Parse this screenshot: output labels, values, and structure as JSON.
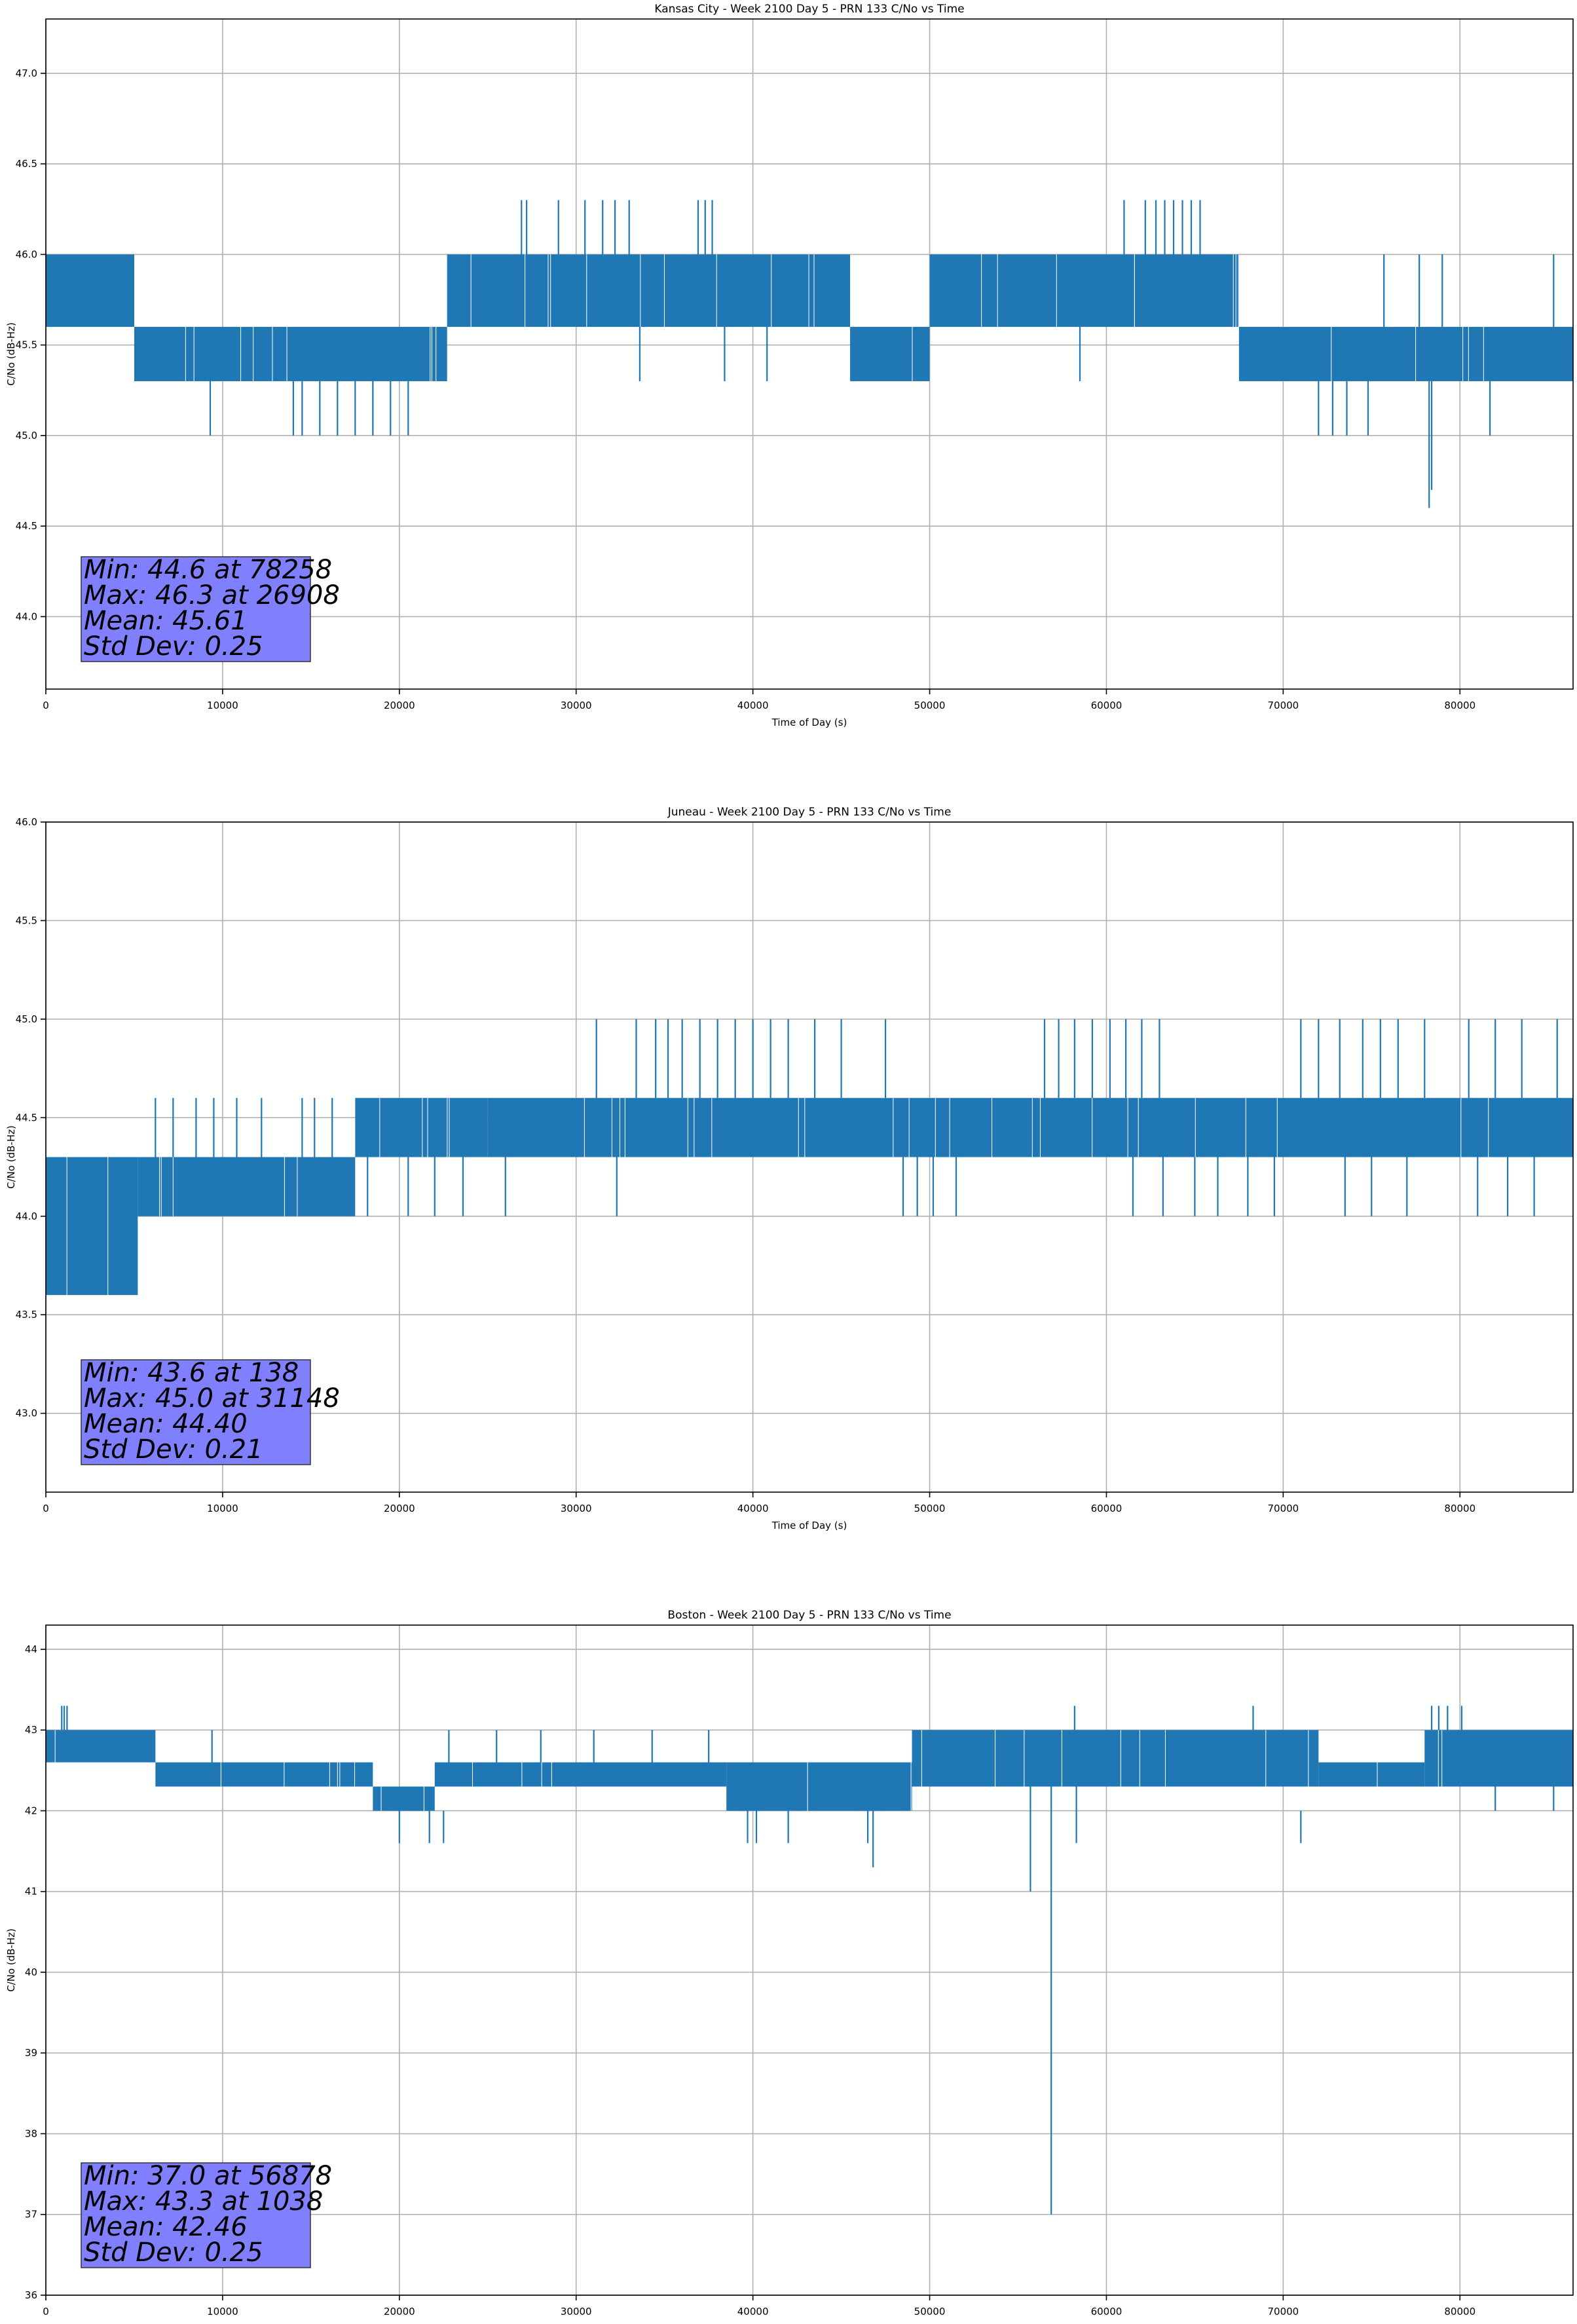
{
  "chart_data": [
    {
      "type": "line",
      "title": "Kansas City - Week 2100 Day 5 - PRN 133 C/No vs Time",
      "xlabel": "Time of Day (s)",
      "ylabel": "C/No (dB-Hz)",
      "xlim": [
        0,
        86400
      ],
      "ylim": [
        43.6,
        47.3
      ],
      "xticks": [
        "0",
        "10000",
        "20000",
        "30000",
        "40000",
        "50000",
        "60000",
        "70000",
        "80000"
      ],
      "yticks": [
        "44.0",
        "44.5",
        "45.0",
        "45.5",
        "46.0",
        "46.5",
        "47.0"
      ],
      "grid": true,
      "series_color": "#1f77b4",
      "segments": [
        {
          "x": [
            0,
            5000
          ],
          "low": 45.6,
          "high": 46.0
        },
        {
          "x": [
            5000,
            22700
          ],
          "low": 45.3,
          "high": 45.6
        },
        {
          "x": [
            22700,
            45500
          ],
          "low": 45.6,
          "high": 46.0
        },
        {
          "x": [
            45500,
            50000
          ],
          "low": 45.3,
          "high": 45.6
        },
        {
          "x": [
            50000,
            67500
          ],
          "low": 45.6,
          "high": 46.0
        },
        {
          "x": [
            67500,
            86400
          ],
          "low": 45.3,
          "high": 45.6
        }
      ],
      "spikes": [
        {
          "x": 9300,
          "low": 45.0,
          "high": 45.3
        },
        {
          "x": 14000,
          "low": 45.0,
          "high": 45.3
        },
        {
          "x": 14500,
          "low": 45.0,
          "high": 45.3
        },
        {
          "x": 15500,
          "low": 45.0,
          "high": 45.3
        },
        {
          "x": 16500,
          "low": 45.0,
          "high": 45.3
        },
        {
          "x": 17500,
          "low": 45.0,
          "high": 45.3
        },
        {
          "x": 18500,
          "low": 45.0,
          "high": 45.3
        },
        {
          "x": 19500,
          "low": 45.0,
          "high": 45.3
        },
        {
          "x": 20500,
          "low": 45.0,
          "high": 45.3
        },
        {
          "x": 26908,
          "low": 46.0,
          "high": 46.3
        },
        {
          "x": 27200,
          "low": 46.0,
          "high": 46.3
        },
        {
          "x": 29000,
          "low": 46.0,
          "high": 46.3
        },
        {
          "x": 30500,
          "low": 46.0,
          "high": 46.3
        },
        {
          "x": 31500,
          "low": 46.0,
          "high": 46.3
        },
        {
          "x": 32200,
          "low": 46.0,
          "high": 46.3
        },
        {
          "x": 33000,
          "low": 46.0,
          "high": 46.3
        },
        {
          "x": 33600,
          "low": 45.3,
          "high": 45.6
        },
        {
          "x": 36900,
          "low": 46.0,
          "high": 46.3
        },
        {
          "x": 37300,
          "low": 46.0,
          "high": 46.3
        },
        {
          "x": 37700,
          "low": 46.0,
          "high": 46.3
        },
        {
          "x": 38400,
          "low": 45.3,
          "high": 45.6
        },
        {
          "x": 40800,
          "low": 45.3,
          "high": 45.6
        },
        {
          "x": 61000,
          "low": 46.0,
          "high": 46.3
        },
        {
          "x": 62200,
          "low": 46.0,
          "high": 46.3
        },
        {
          "x": 62800,
          "low": 46.0,
          "high": 46.3
        },
        {
          "x": 63300,
          "low": 46.0,
          "high": 46.3
        },
        {
          "x": 63800,
          "low": 46.0,
          "high": 46.3
        },
        {
          "x": 64300,
          "low": 46.0,
          "high": 46.3
        },
        {
          "x": 64800,
          "low": 46.0,
          "high": 46.3
        },
        {
          "x": 65300,
          "low": 46.0,
          "high": 46.3
        },
        {
          "x": 58500,
          "low": 45.3,
          "high": 45.6
        },
        {
          "x": 72000,
          "low": 45.0,
          "high": 45.3
        },
        {
          "x": 72800,
          "low": 45.0,
          "high": 45.3
        },
        {
          "x": 73600,
          "low": 45.0,
          "high": 45.3
        },
        {
          "x": 74800,
          "low": 45.0,
          "high": 45.3
        },
        {
          "x": 78258,
          "low": 44.6,
          "high": 45.3
        },
        {
          "x": 78400,
          "low": 44.7,
          "high": 45.3
        },
        {
          "x": 81700,
          "low": 45.0,
          "high": 45.3
        },
        {
          "x": 75700,
          "low": 45.6,
          "high": 46.0
        },
        {
          "x": 77700,
          "low": 45.6,
          "high": 46.0
        },
        {
          "x": 79000,
          "low": 45.6,
          "high": 46.0
        },
        {
          "x": 85300,
          "low": 45.6,
          "high": 46.0
        }
      ],
      "stats": {
        "min": "Min: 44.6 at 78258",
        "max": "Max: 46.3 at 26908",
        "mean": "Mean: 45.61",
        "std": "Std Dev: 0.25"
      }
    },
    {
      "type": "line",
      "title": "Juneau - Week 2100 Day 5 - PRN 133 C/No vs Time",
      "xlabel": "Time of Day (s)",
      "ylabel": "C/No (dB-Hz)",
      "xlim": [
        0,
        86400
      ],
      "ylim": [
        42.6,
        46.0
      ],
      "xticks": [
        "0",
        "10000",
        "20000",
        "30000",
        "40000",
        "50000",
        "60000",
        "70000",
        "80000"
      ],
      "yticks": [
        "43.0",
        "43.5",
        "44.0",
        "44.5",
        "45.0",
        "45.5",
        "46.0"
      ],
      "grid": true,
      "series_color": "#1f77b4",
      "segments": [
        {
          "x": [
            0,
            5200
          ],
          "low": 43.6,
          "high": 44.3
        },
        {
          "x": [
            5200,
            17500
          ],
          "low": 44.0,
          "high": 44.3
        },
        {
          "x": [
            17500,
            25000
          ],
          "low": 44.3,
          "high": 44.6
        },
        {
          "x": [
            25000,
            86400
          ],
          "low": 44.3,
          "high": 44.6
        }
      ],
      "spikes": [
        {
          "x": 6200,
          "low": 44.3,
          "high": 44.6
        },
        {
          "x": 7200,
          "low": 44.3,
          "high": 44.6
        },
        {
          "x": 8500,
          "low": 44.3,
          "high": 44.6
        },
        {
          "x": 9500,
          "low": 44.3,
          "high": 44.6
        },
        {
          "x": 10800,
          "low": 44.3,
          "high": 44.6
        },
        {
          "x": 12200,
          "low": 44.3,
          "high": 44.6
        },
        {
          "x": 14500,
          "low": 44.3,
          "high": 44.6
        },
        {
          "x": 15200,
          "low": 44.3,
          "high": 44.6
        },
        {
          "x": 16200,
          "low": 44.3,
          "high": 44.6
        },
        {
          "x": 18200,
          "low": 44.0,
          "high": 44.3
        },
        {
          "x": 20500,
          "low": 44.0,
          "high": 44.3
        },
        {
          "x": 22000,
          "low": 44.0,
          "high": 44.3
        },
        {
          "x": 23600,
          "low": 44.0,
          "high": 44.3
        },
        {
          "x": 26000,
          "low": 44.0,
          "high": 44.3
        },
        {
          "x": 31148,
          "low": 44.6,
          "high": 45.0
        },
        {
          "x": 32300,
          "low": 44.0,
          "high": 44.3
        },
        {
          "x": 33400,
          "low": 44.6,
          "high": 45.0
        },
        {
          "x": 34500,
          "low": 44.6,
          "high": 45.0
        },
        {
          "x": 35200,
          "low": 44.6,
          "high": 45.0
        },
        {
          "x": 36000,
          "low": 44.6,
          "high": 45.0
        },
        {
          "x": 37000,
          "low": 44.6,
          "high": 45.0
        },
        {
          "x": 38000,
          "low": 44.6,
          "high": 45.0
        },
        {
          "x": 39000,
          "low": 44.6,
          "high": 45.0
        },
        {
          "x": 40000,
          "low": 44.6,
          "high": 45.0
        },
        {
          "x": 41000,
          "low": 44.6,
          "high": 45.0
        },
        {
          "x": 42000,
          "low": 44.6,
          "high": 45.0
        },
        {
          "x": 43500,
          "low": 44.6,
          "high": 45.0
        },
        {
          "x": 45000,
          "low": 44.6,
          "high": 45.0
        },
        {
          "x": 47500,
          "low": 44.6,
          "high": 45.0
        },
        {
          "x": 48500,
          "low": 44.0,
          "high": 44.3
        },
        {
          "x": 49300,
          "low": 44.0,
          "high": 44.3
        },
        {
          "x": 50200,
          "low": 44.0,
          "high": 44.3
        },
        {
          "x": 51500,
          "low": 44.0,
          "high": 44.3
        },
        {
          "x": 56500,
          "low": 44.6,
          "high": 45.0
        },
        {
          "x": 57300,
          "low": 44.6,
          "high": 45.0
        },
        {
          "x": 58200,
          "low": 44.6,
          "high": 45.0
        },
        {
          "x": 59200,
          "low": 44.6,
          "high": 45.0
        },
        {
          "x": 60200,
          "low": 44.6,
          "high": 45.0
        },
        {
          "x": 61100,
          "low": 44.6,
          "high": 45.0
        },
        {
          "x": 62000,
          "low": 44.6,
          "high": 45.0
        },
        {
          "x": 63000,
          "low": 44.6,
          "high": 45.0
        },
        {
          "x": 61500,
          "low": 44.0,
          "high": 44.3
        },
        {
          "x": 63200,
          "low": 44.0,
          "high": 44.3
        },
        {
          "x": 65000,
          "low": 44.0,
          "high": 44.3
        },
        {
          "x": 66300,
          "low": 44.0,
          "high": 44.3
        },
        {
          "x": 68000,
          "low": 44.0,
          "high": 44.3
        },
        {
          "x": 69500,
          "low": 44.0,
          "high": 44.3
        },
        {
          "x": 71000,
          "low": 44.6,
          "high": 45.0
        },
        {
          "x": 72000,
          "low": 44.6,
          "high": 45.0
        },
        {
          "x": 73200,
          "low": 44.6,
          "high": 45.0
        },
        {
          "x": 74500,
          "low": 44.6,
          "high": 45.0
        },
        {
          "x": 75500,
          "low": 44.6,
          "high": 45.0
        },
        {
          "x": 76500,
          "low": 44.6,
          "high": 45.0
        },
        {
          "x": 78000,
          "low": 44.6,
          "high": 45.0
        },
        {
          "x": 73500,
          "low": 44.0,
          "high": 44.3
        },
        {
          "x": 75000,
          "low": 44.0,
          "high": 44.3
        },
        {
          "x": 77000,
          "low": 44.0,
          "high": 44.3
        },
        {
          "x": 80500,
          "low": 44.6,
          "high": 45.0
        },
        {
          "x": 82000,
          "low": 44.6,
          "high": 45.0
        },
        {
          "x": 83500,
          "low": 44.6,
          "high": 45.0
        },
        {
          "x": 85500,
          "low": 44.6,
          "high": 45.0
        },
        {
          "x": 81000,
          "low": 44.0,
          "high": 44.3
        },
        {
          "x": 82700,
          "low": 44.0,
          "high": 44.3
        },
        {
          "x": 84200,
          "low": 44.0,
          "high": 44.3
        }
      ],
      "stats": {
        "min": "Min: 43.6 at 138",
        "max": "Max: 45.0 at 31148",
        "mean": "Mean: 44.40",
        "std": "Std Dev: 0.21"
      }
    },
    {
      "type": "line",
      "title": "Boston - Week 2100 Day 5 - PRN 133 C/No vs Time",
      "xlabel": "Time of Day (s)",
      "ylabel": "C/No (dB-Hz)",
      "xlim": [
        0,
        86400
      ],
      "ylim": [
        36,
        44.3
      ],
      "xticks": [
        "0",
        "10000",
        "20000",
        "30000",
        "40000",
        "50000",
        "60000",
        "70000",
        "80000"
      ],
      "yticks": [
        "36",
        "37",
        "38",
        "39",
        "40",
        "41",
        "42",
        "43",
        "44"
      ],
      "grid": true,
      "series_color": "#1f77b4",
      "segments": [
        {
          "x": [
            0,
            6200
          ],
          "low": 42.6,
          "high": 43.0
        },
        {
          "x": [
            6200,
            18500
          ],
          "low": 42.3,
          "high": 42.6
        },
        {
          "x": [
            18500,
            22000
          ],
          "low": 42.0,
          "high": 42.3
        },
        {
          "x": [
            22000,
            38500
          ],
          "low": 42.3,
          "high": 42.6
        },
        {
          "x": [
            38500,
            49000
          ],
          "low": 42.0,
          "high": 42.6
        },
        {
          "x": [
            49000,
            72000
          ],
          "low": 42.3,
          "high": 43.0
        },
        {
          "x": [
            72000,
            78000
          ],
          "low": 42.3,
          "high": 42.6
        },
        {
          "x": [
            78000,
            86400
          ],
          "low": 42.3,
          "high": 43.0
        }
      ],
      "spikes": [
        {
          "x": 900,
          "low": 43.0,
          "high": 43.3
        },
        {
          "x": 1038,
          "low": 43.0,
          "high": 43.3
        },
        {
          "x": 1200,
          "low": 43.0,
          "high": 43.3
        },
        {
          "x": 20000,
          "low": 41.6,
          "high": 42.0
        },
        {
          "x": 21700,
          "low": 41.6,
          "high": 42.0
        },
        {
          "x": 22500,
          "low": 41.6,
          "high": 42.0
        },
        {
          "x": 9400,
          "low": 42.6,
          "high": 43.0
        },
        {
          "x": 22800,
          "low": 42.6,
          "high": 43.0
        },
        {
          "x": 25500,
          "low": 42.6,
          "high": 43.0
        },
        {
          "x": 28000,
          "low": 42.6,
          "high": 43.0
        },
        {
          "x": 31000,
          "low": 42.6,
          "high": 43.0
        },
        {
          "x": 34300,
          "low": 42.6,
          "high": 43.0
        },
        {
          "x": 37500,
          "low": 42.6,
          "high": 43.0
        },
        {
          "x": 39700,
          "low": 41.6,
          "high": 42.0
        },
        {
          "x": 40200,
          "low": 41.6,
          "high": 42.0
        },
        {
          "x": 42000,
          "low": 41.6,
          "high": 42.0
        },
        {
          "x": 46500,
          "low": 41.6,
          "high": 42.0
        },
        {
          "x": 46800,
          "low": 41.3,
          "high": 42.0
        },
        {
          "x": 55700,
          "low": 41.0,
          "high": 42.3
        },
        {
          "x": 56878,
          "low": 37.0,
          "high": 42.3
        },
        {
          "x": 58300,
          "low": 41.6,
          "high": 42.3
        },
        {
          "x": 58200,
          "low": 43.0,
          "high": 43.3
        },
        {
          "x": 68300,
          "low": 43.0,
          "high": 43.3
        },
        {
          "x": 71000,
          "low": 41.6,
          "high": 42.0
        },
        {
          "x": 78400,
          "low": 43.0,
          "high": 43.3
        },
        {
          "x": 78800,
          "low": 43.0,
          "high": 43.3
        },
        {
          "x": 79300,
          "low": 43.0,
          "high": 43.3
        },
        {
          "x": 80100,
          "low": 43.0,
          "high": 43.3
        },
        {
          "x": 82000,
          "low": 42.0,
          "high": 42.3
        },
        {
          "x": 85300,
          "low": 42.0,
          "high": 42.3
        }
      ],
      "stats": {
        "min": "Min: 37.0 at 56878",
        "max": "Max: 43.3 at 1038",
        "mean": "Mean: 42.46",
        "std": "Std Dev: 0.25"
      }
    }
  ]
}
